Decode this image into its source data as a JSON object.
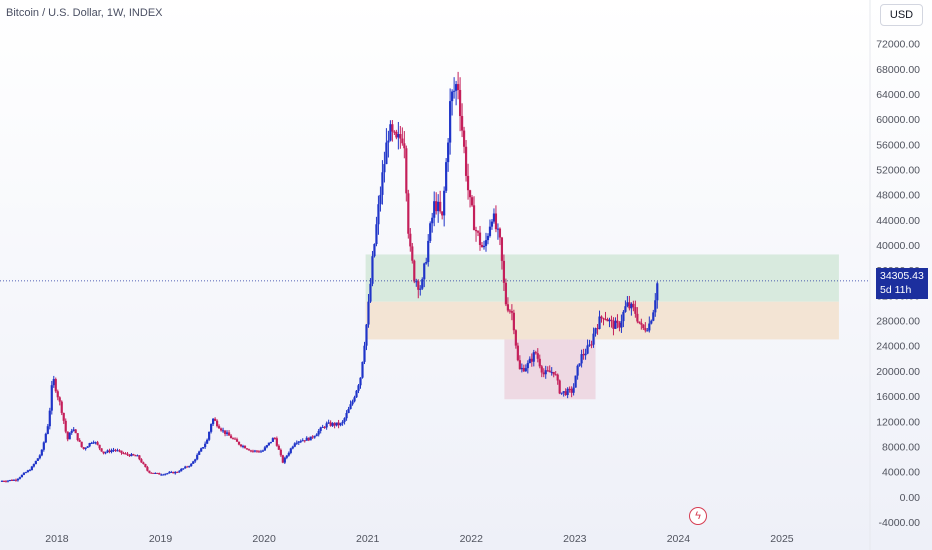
{
  "header": {
    "title": "Bitcoin / U.S. Dollar, 1W, INDEX",
    "currency": "USD"
  },
  "last_price": {
    "value": "34305.43",
    "countdown": "5d 11h"
  },
  "icons": {
    "alert": "lightning-bolt-icon",
    "alert_glyph": "ϟ"
  },
  "colors": {
    "up": "#1f34c8",
    "down": "#c41f5a",
    "badge": "#1c2f9e",
    "zone_green": "#d2e8d8",
    "zone_orange": "#f2e0cc",
    "zone_pink": "#ecd3de"
  },
  "chart_data": {
    "type": "candlestick",
    "title": "Bitcoin / U.S. Dollar, 1W, INDEX",
    "ylim": [
      -4000,
      74000
    ],
    "yticks": [
      "72000.00",
      "68000.00",
      "64000.00",
      "60000.00",
      "56000.00",
      "52000.00",
      "48000.00",
      "44000.00",
      "40000.00",
      "36000.00",
      "32000.00",
      "28000.00",
      "24000.00",
      "20000.00",
      "16000.00",
      "12000.00",
      "8000.00",
      "4000.00",
      "0.00",
      "-4000.00"
    ],
    "xlim": [
      2017.45,
      2025.85
    ],
    "xticks": [
      "2018",
      "2019",
      "2020",
      "2021",
      "2022",
      "2023",
      "2024",
      "2025"
    ],
    "zones": [
      {
        "name": "green",
        "x": [
          2020.98,
          2025.55
        ],
        "y": [
          31000,
          38500
        ]
      },
      {
        "name": "orange",
        "x": [
          2020.98,
          2025.55
        ],
        "y": [
          25000,
          31000
        ]
      },
      {
        "name": "pink",
        "x": [
          2022.32,
          2023.2
        ],
        "y": [
          15500,
          25000
        ]
      }
    ],
    "last_price_line": 34305.43,
    "path": [
      [
        2017.45,
        2500
      ],
      [
        2017.6,
        2700
      ],
      [
        2017.75,
        4500
      ],
      [
        2017.85,
        7000
      ],
      [
        2017.92,
        12000
      ],
      [
        2017.96,
        19000
      ],
      [
        2018.05,
        13500
      ],
      [
        2018.1,
        9000
      ],
      [
        2018.15,
        11000
      ],
      [
        2018.25,
        7500
      ],
      [
        2018.35,
        9000
      ],
      [
        2018.45,
        7000
      ],
      [
        2018.55,
        7500
      ],
      [
        2018.65,
        6800
      ],
      [
        2018.78,
        6400
      ],
      [
        2018.88,
        4000
      ],
      [
        2018.98,
        3600
      ],
      [
        2019.15,
        3900
      ],
      [
        2019.3,
        5200
      ],
      [
        2019.45,
        9000
      ],
      [
        2019.5,
        12500
      ],
      [
        2019.6,
        10500
      ],
      [
        2019.75,
        8500
      ],
      [
        2019.88,
        7300
      ],
      [
        2019.98,
        7200
      ],
      [
        2020.1,
        9500
      ],
      [
        2020.18,
        5500
      ],
      [
        2020.3,
        8800
      ],
      [
        2020.45,
        9300
      ],
      [
        2020.6,
        11500
      ],
      [
        2020.75,
        11500
      ],
      [
        2020.85,
        15000
      ],
      [
        2020.93,
        19000
      ],
      [
        2021.0,
        29000
      ],
      [
        2021.05,
        38000
      ],
      [
        2021.12,
        48000
      ],
      [
        2021.2,
        58000
      ],
      [
        2021.28,
        56000
      ],
      [
        2021.35,
        58000
      ],
      [
        2021.4,
        40000
      ],
      [
        2021.45,
        35000
      ],
      [
        2021.52,
        33000
      ],
      [
        2021.58,
        40000
      ],
      [
        2021.65,
        47000
      ],
      [
        2021.72,
        44000
      ],
      [
        2021.8,
        63000
      ],
      [
        2021.87,
        66000
      ],
      [
        2021.92,
        57000
      ],
      [
        2021.98,
        47000
      ],
      [
        2022.05,
        42000
      ],
      [
        2022.12,
        39000
      ],
      [
        2022.2,
        45000
      ],
      [
        2022.28,
        40000
      ],
      [
        2022.33,
        31000
      ],
      [
        2022.4,
        29000
      ],
      [
        2022.46,
        20000
      ],
      [
        2022.55,
        21000
      ],
      [
        2022.62,
        23000
      ],
      [
        2022.7,
        19500
      ],
      [
        2022.8,
        20000
      ],
      [
        2022.86,
        16500
      ],
      [
        2022.98,
        16800
      ],
      [
        2023.05,
        22000
      ],
      [
        2023.15,
        24000
      ],
      [
        2023.2,
        27000
      ],
      [
        2023.28,
        29000
      ],
      [
        2023.35,
        27500
      ],
      [
        2023.42,
        27000
      ],
      [
        2023.5,
        30500
      ],
      [
        2023.58,
        29500
      ],
      [
        2023.65,
        26500
      ],
      [
        2023.72,
        27500
      ],
      [
        2023.76,
        30000
      ],
      [
        2023.8,
        34305
      ]
    ]
  }
}
